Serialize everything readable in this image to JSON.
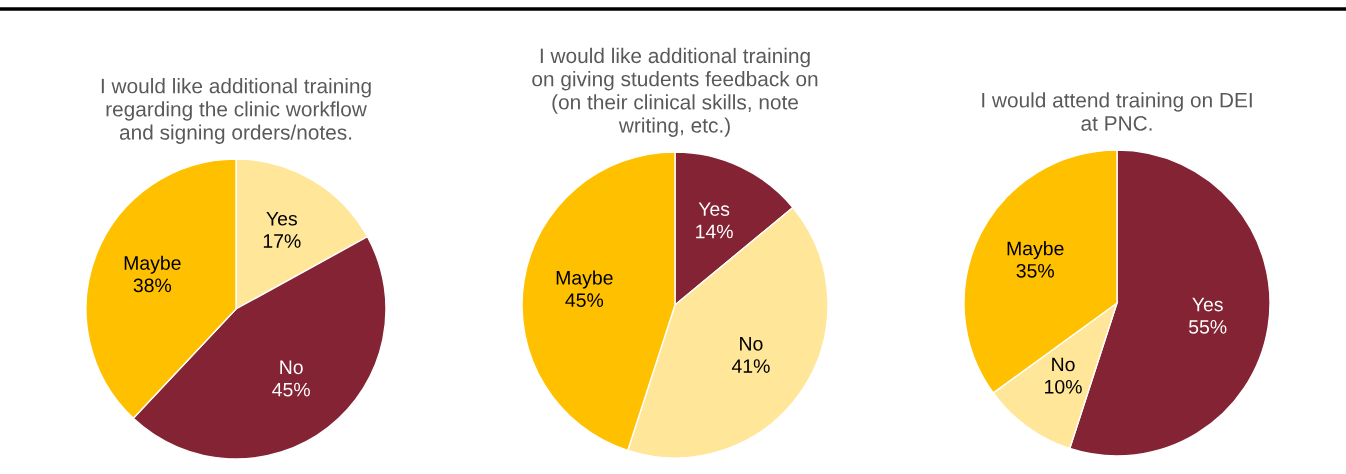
{
  "chart_data": [
    {
      "type": "pie",
      "title": "I would like additional training\nregarding the clinic workflow\nand signing orders/notes.",
      "categories": [
        "Yes",
        "No",
        "Maybe"
      ],
      "values": [
        17,
        45,
        38
      ],
      "value_labels": [
        "17%",
        "45%",
        "38%"
      ],
      "colors": [
        "#ffe699",
        "#832334",
        "#ffc000"
      ]
    },
    {
      "type": "pie",
      "title": "I would like additional training\non giving students feedback on\n(on their clinical skills, note\nwriting, etc.)",
      "categories": [
        "Yes",
        "No",
        "Maybe"
      ],
      "values": [
        14,
        41,
        45
      ],
      "value_labels": [
        "14%",
        "41%",
        "45%"
      ],
      "colors": [
        "#832334",
        "#ffe699",
        "#ffc000"
      ]
    },
    {
      "type": "pie",
      "title": "I would attend training on DEI\nat PNC.",
      "categories": [
        "Yes",
        "No",
        "Maybe"
      ],
      "values": [
        55,
        10,
        35
      ],
      "value_labels": [
        "55%",
        "10%",
        "35%"
      ],
      "colors": [
        "#832334",
        "#ffe699",
        "#ffc000"
      ]
    }
  ]
}
